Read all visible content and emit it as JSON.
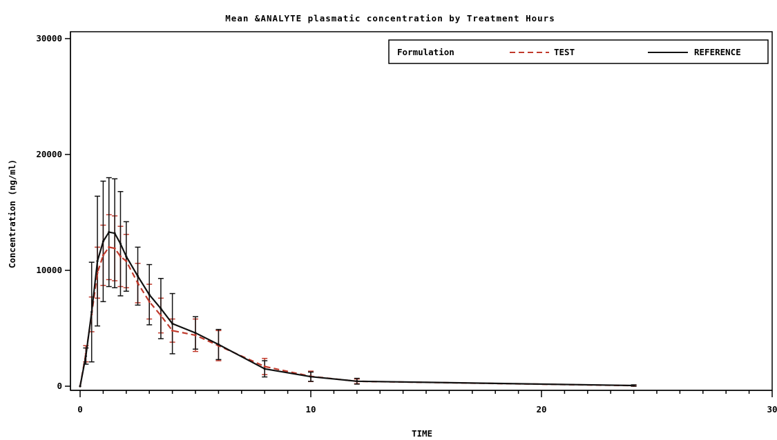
{
  "chart_data": {
    "type": "line",
    "title": "Mean &ANALYTE plasmatic concentration by Treatment Hours",
    "xlabel": "TIME",
    "ylabel": "Concentration (ng/ml)",
    "xlim": [
      0,
      30
    ],
    "ylim": [
      0,
      30000
    ],
    "x_ticks": [
      0,
      10,
      20,
      30
    ],
    "y_ticks": [
      0,
      10000,
      20000,
      30000
    ],
    "grid": false,
    "legend": {
      "title": "Formulation",
      "placement": "top-right",
      "entries": [
        "TEST",
        "REFERENCE"
      ]
    },
    "x": [
      0,
      0.25,
      0.5,
      0.75,
      1,
      1.25,
      1.5,
      1.75,
      2,
      2.5,
      3,
      3.5,
      4,
      5,
      6,
      8,
      10,
      12,
      24
    ],
    "series": [
      {
        "name": "TEST",
        "color": "#c0392b",
        "dash": true,
        "values": [
          0,
          2800,
          6200,
          9800,
          11300,
          12000,
          11900,
          11200,
          10800,
          8900,
          7300,
          6100,
          4800,
          4400,
          3500,
          1700,
          850,
          420,
          50
        ],
        "errors": [
          0,
          700,
          1500,
          2200,
          2600,
          2800,
          2800,
          2600,
          2300,
          1700,
          1500,
          1500,
          1000,
          1400,
          1300,
          700,
          450,
          200,
          50
        ]
      },
      {
        "name": "REFERENCE",
        "color": "#111111",
        "dash": false,
        "values": [
          0,
          2600,
          6400,
          10800,
          12500,
          13300,
          13200,
          12300,
          11200,
          9500,
          7900,
          6700,
          5400,
          4600,
          3600,
          1500,
          820,
          430,
          60
        ],
        "errors": [
          0,
          700,
          4300,
          5600,
          5200,
          4700,
          4700,
          4500,
          3000,
          2500,
          2600,
          2600,
          2600,
          1400,
          1300,
          700,
          400,
          250,
          60
        ]
      }
    ]
  }
}
